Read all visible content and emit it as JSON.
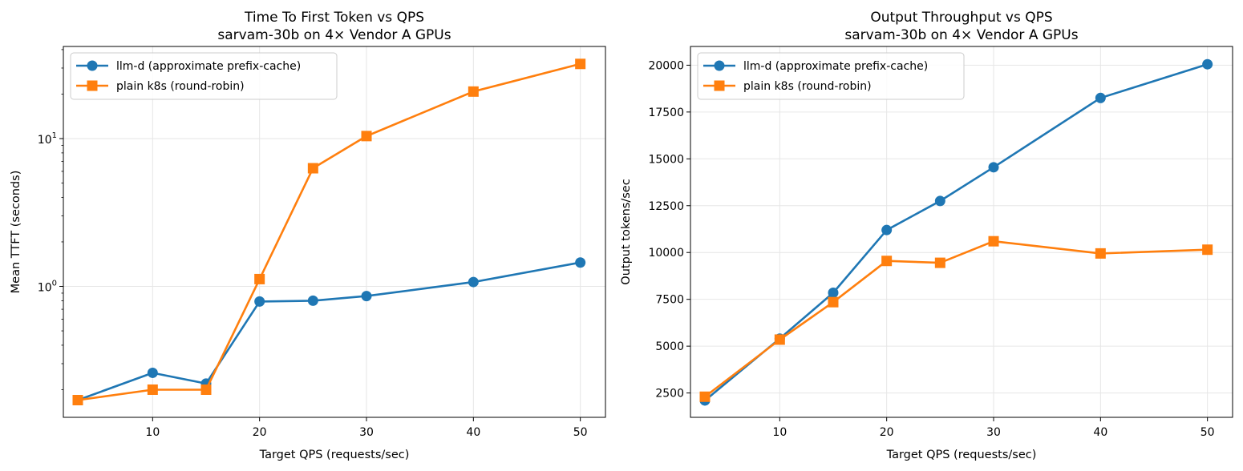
{
  "chart_data": [
    {
      "type": "line",
      "title": "Time To First Token vs QPS",
      "subtitle": "sarvam-30b on 4× Vendor A GPUs",
      "xlabel": "Target QPS (requests/sec)",
      "ylabel": "Mean TTFT (seconds)",
      "yscale": "log",
      "xlim": [
        1.65,
        52.35
      ],
      "ylim": [
        0.13,
        42
      ],
      "xticks": [
        10,
        20,
        30,
        40,
        50
      ],
      "yticks": [
        {
          "value": 1,
          "label": "10",
          "exp": "0"
        },
        {
          "value": 10,
          "label": "10",
          "exp": "1"
        }
      ],
      "grid": true,
      "legend_position": "upper-left",
      "x": [
        3,
        10,
        15,
        20,
        25,
        30,
        40,
        50
      ],
      "series": [
        {
          "name": "llm-d (approximate prefix-cache)",
          "color": "#1f77b4",
          "marker": "circle",
          "values": [
            0.17,
            0.26,
            0.22,
            0.79,
            0.8,
            0.86,
            1.07,
            1.45
          ]
        },
        {
          "name": "plain k8s (round-robin)",
          "color": "#ff7f0e",
          "marker": "square",
          "values": [
            0.17,
            0.2,
            0.2,
            1.12,
            6.3,
            10.4,
            20.8,
            32.0
          ]
        }
      ]
    },
    {
      "type": "line",
      "title": "Output Throughput vs QPS",
      "subtitle": "sarvam-30b on 4× Vendor A GPUs",
      "xlabel": "Target QPS (requests/sec)",
      "ylabel": "Output tokens/sec",
      "yscale": "linear",
      "xlim": [
        1.65,
        52.35
      ],
      "ylim": [
        1200,
        21000
      ],
      "xticks": [
        10,
        20,
        30,
        40,
        50
      ],
      "yticks": [
        {
          "value": 2500,
          "label": "2500"
        },
        {
          "value": 5000,
          "label": "5000"
        },
        {
          "value": 7500,
          "label": "7500"
        },
        {
          "value": 10000,
          "label": "10000"
        },
        {
          "value": 12500,
          "label": "12500"
        },
        {
          "value": 15000,
          "label": "15000"
        },
        {
          "value": 17500,
          "label": "17500"
        },
        {
          "value": 20000,
          "label": "20000"
        }
      ],
      "grid": true,
      "legend_position": "upper-left",
      "x": [
        3,
        10,
        15,
        20,
        25,
        30,
        40,
        50
      ],
      "series": [
        {
          "name": "llm-d (approximate prefix-cache)",
          "color": "#1f77b4",
          "marker": "circle",
          "values": [
            2100,
            5400,
            7850,
            11200,
            12750,
            14550,
            18250,
            20050
          ]
        },
        {
          "name": "plain k8s (round-robin)",
          "color": "#ff7f0e",
          "marker": "square",
          "values": [
            2300,
            5350,
            7350,
            9550,
            9450,
            10600,
            9950,
            10150
          ]
        }
      ]
    }
  ]
}
